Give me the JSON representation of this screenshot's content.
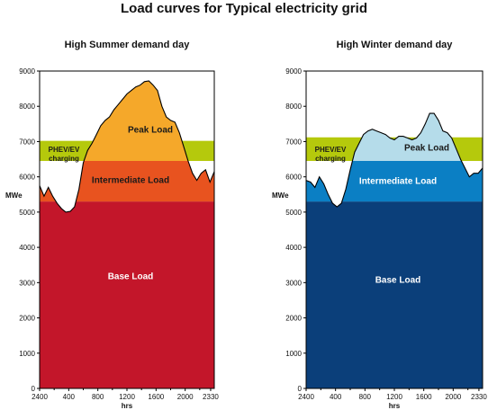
{
  "title": "Load curves for Typical electricity grid",
  "chart_data": [
    {
      "type": "area",
      "title": "High Summer demand day",
      "ylabel": "MWe",
      "xlabel": "hrs",
      "ylim": [
        0,
        9000
      ],
      "yticks": [
        0,
        1000,
        2000,
        3000,
        4000,
        5000,
        6000,
        7000,
        8000,
        9000
      ],
      "xticks": [
        "2400",
        "400",
        "800",
        "1200",
        "1600",
        "2000",
        "2330"
      ],
      "xtick_hours": [
        0,
        4,
        8,
        12,
        16,
        20,
        23.5
      ],
      "xlim_hours": [
        0,
        24
      ],
      "bands": [
        {
          "name": "Base Load",
          "from": 0,
          "to": 5300,
          "color": "#c3162a",
          "label_color": "#ffffff",
          "label_value": 3100
        },
        {
          "name": "Intermediate Load",
          "from": 5300,
          "to": 6450,
          "color": "#e8531f",
          "label_color": "#1a1a1a",
          "label_value": 5820
        },
        {
          "name": "Peak Load",
          "from": 6450,
          "to": 9000,
          "color": "#f5a82a",
          "label_color": "#1a1a1a",
          "label_value": 7250
        },
        {
          "name": "PHEV/EV\ncharging",
          "from": 6450,
          "to": 7020,
          "color": "#b5c90c",
          "label_color": "#1a1a1a",
          "label_value": 6550,
          "region": "upper-band"
        }
      ],
      "fill_level": 7020,
      "curve": [
        [
          0,
          5750
        ],
        [
          0.6,
          5450
        ],
        [
          1.2,
          5700
        ],
        [
          1.8,
          5450
        ],
        [
          2.4,
          5250
        ],
        [
          3.0,
          5100
        ],
        [
          3.6,
          5000
        ],
        [
          4.2,
          5020
        ],
        [
          4.8,
          5150
        ],
        [
          5.4,
          5650
        ],
        [
          6.0,
          6400
        ],
        [
          6.6,
          6750
        ],
        [
          7.2,
          6950
        ],
        [
          7.8,
          7200
        ],
        [
          8.4,
          7450
        ],
        [
          9.0,
          7600
        ],
        [
          9.6,
          7700
        ],
        [
          10.2,
          7900
        ],
        [
          10.8,
          8050
        ],
        [
          11.4,
          8200
        ],
        [
          12.0,
          8350
        ],
        [
          12.6,
          8450
        ],
        [
          13.2,
          8550
        ],
        [
          13.8,
          8600
        ],
        [
          14.4,
          8700
        ],
        [
          15.0,
          8720
        ],
        [
          15.6,
          8600
        ],
        [
          16.2,
          8450
        ],
        [
          16.8,
          8000
        ],
        [
          17.4,
          7700
        ],
        [
          18.0,
          7600
        ],
        [
          18.6,
          7550
        ],
        [
          19.2,
          7250
        ],
        [
          19.8,
          6850
        ],
        [
          20.4,
          6450
        ],
        [
          21.0,
          6100
        ],
        [
          21.6,
          5900
        ],
        [
          22.2,
          6100
        ],
        [
          22.8,
          6200
        ],
        [
          23.4,
          5850
        ],
        [
          24.0,
          6150
        ]
      ]
    },
    {
      "type": "area",
      "title": "High Winter demand day",
      "ylabel": "MWe",
      "xlabel": "hrs",
      "ylim": [
        0,
        9000
      ],
      "yticks": [
        0,
        1000,
        2000,
        3000,
        4000,
        5000,
        6000,
        7000,
        8000,
        9000
      ],
      "xticks": [
        "2400",
        "400",
        "800",
        "1200",
        "1600",
        "2000",
        "2330"
      ],
      "xtick_hours": [
        0,
        4,
        8,
        12,
        16,
        20,
        23.5
      ],
      "xlim_hours": [
        0,
        24
      ],
      "bands": [
        {
          "name": "Base Load",
          "from": 0,
          "to": 5300,
          "color": "#0b3f7a",
          "label_color": "#ffffff",
          "label_value": 3000
        },
        {
          "name": "Intermediate Load",
          "from": 5300,
          "to": 6450,
          "color": "#0b7fc4",
          "label_color": "#ffffff",
          "label_value": 5800
        },
        {
          "name": "Peak Load",
          "from": 6450,
          "to": 9000,
          "color": "#b5dcea",
          "label_color": "#1a1a1a",
          "label_value": 6750
        },
        {
          "name": "PHEV/EV\ncharging",
          "from": 6450,
          "to": 7120,
          "color": "#b5c90c",
          "label_color": "#1a1a1a",
          "label_value": 6550,
          "region": "upper-band"
        }
      ],
      "fill_level": 7120,
      "curve": [
        [
          0,
          5900
        ],
        [
          0.6,
          5850
        ],
        [
          1.2,
          5700
        ],
        [
          1.8,
          6000
        ],
        [
          2.4,
          5800
        ],
        [
          3.0,
          5500
        ],
        [
          3.6,
          5250
        ],
        [
          4.2,
          5150
        ],
        [
          4.8,
          5250
        ],
        [
          5.4,
          5650
        ],
        [
          6.0,
          6200
        ],
        [
          6.6,
          6700
        ],
        [
          7.2,
          6950
        ],
        [
          7.8,
          7200
        ],
        [
          8.4,
          7300
        ],
        [
          9.0,
          7350
        ],
        [
          9.6,
          7300
        ],
        [
          10.2,
          7250
        ],
        [
          10.8,
          7200
        ],
        [
          11.4,
          7100
        ],
        [
          12.0,
          7050
        ],
        [
          12.6,
          7150
        ],
        [
          13.2,
          7150
        ],
        [
          13.8,
          7100
        ],
        [
          14.4,
          7050
        ],
        [
          15.0,
          7100
        ],
        [
          15.6,
          7250
        ],
        [
          16.2,
          7500
        ],
        [
          16.8,
          7800
        ],
        [
          17.4,
          7800
        ],
        [
          18.0,
          7600
        ],
        [
          18.6,
          7300
        ],
        [
          19.2,
          7250
        ],
        [
          19.8,
          7100
        ],
        [
          20.4,
          6800
        ],
        [
          21.0,
          6500
        ],
        [
          21.6,
          6250
        ],
        [
          22.2,
          6000
        ],
        [
          22.8,
          6100
        ],
        [
          23.4,
          6100
        ],
        [
          24.0,
          6250
        ]
      ]
    }
  ]
}
